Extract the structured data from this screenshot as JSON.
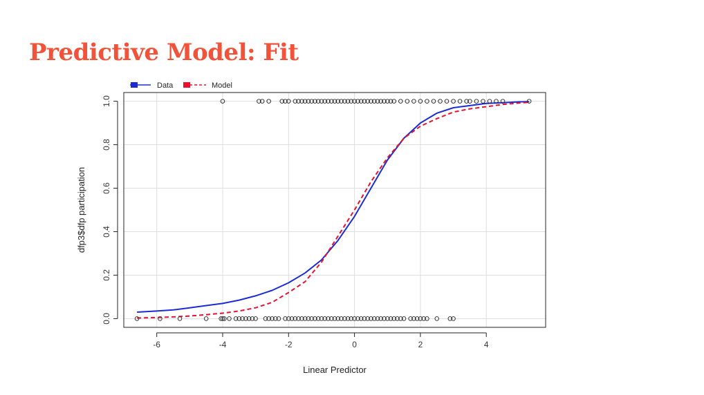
{
  "slide": {
    "title": "Predictive Model: Fit"
  },
  "colors": {
    "title": "#f0533a",
    "data": "#1a2bd6",
    "model": "#e8102e",
    "points": "#222222",
    "grid": "#dddddd"
  },
  "chart_data": {
    "type": "line",
    "xlabel": "Linear Predictor",
    "ylabel": "dfp3$dfp participation",
    "xlim": [
      -7,
      5.8
    ],
    "ylim": [
      -0.04,
      1.04
    ],
    "xticks": [
      -6,
      -4,
      -2,
      0,
      2,
      4
    ],
    "yticks": [
      0.0,
      0.2,
      0.4,
      0.6,
      0.8,
      1.0
    ],
    "xtick_labels": [
      "-6",
      "-4",
      "-2",
      "0",
      "2",
      "4"
    ],
    "ytick_labels": [
      "0.0",
      "0.2",
      "0.4",
      "0.6",
      "0.8",
      "1.0"
    ],
    "grid": true,
    "legend": {
      "placement": "top-left",
      "entries": [
        "Data",
        "Model"
      ]
    },
    "series": [
      {
        "name": "Data",
        "style": "solid",
        "x": [
          -6.6,
          -6.0,
          -5.5,
          -5.0,
          -4.5,
          -4.0,
          -3.5,
          -3.0,
          -2.5,
          -2.0,
          -1.5,
          -1.0,
          -0.5,
          0.0,
          0.5,
          1.0,
          1.5,
          2.0,
          2.5,
          3.0,
          3.5,
          4.0,
          4.5,
          5.0,
          5.3
        ],
        "y": [
          0.03,
          0.035,
          0.04,
          0.05,
          0.06,
          0.07,
          0.085,
          0.105,
          0.13,
          0.165,
          0.21,
          0.27,
          0.36,
          0.47,
          0.6,
          0.73,
          0.83,
          0.9,
          0.945,
          0.97,
          0.98,
          0.99,
          0.993,
          0.997,
          0.998
        ]
      },
      {
        "name": "Model",
        "style": "dashed",
        "x": [
          -6.6,
          -6.0,
          -5.5,
          -5.0,
          -4.5,
          -4.0,
          -3.5,
          -3.0,
          -2.5,
          -2.0,
          -1.5,
          -1.0,
          -0.5,
          0.0,
          0.5,
          1.0,
          1.5,
          2.0,
          2.5,
          3.0,
          3.5,
          4.0,
          4.5,
          5.0,
          5.3
        ],
        "y": [
          0.003,
          0.005,
          0.008,
          0.012,
          0.018,
          0.025,
          0.035,
          0.05,
          0.075,
          0.12,
          0.17,
          0.26,
          0.38,
          0.5,
          0.63,
          0.74,
          0.83,
          0.885,
          0.92,
          0.95,
          0.965,
          0.975,
          0.985,
          0.992,
          0.995
        ]
      },
      {
        "name": "",
        "style": "points",
        "y_value": 0,
        "x": [
          -6.6,
          -5.9,
          -5.3,
          -4.5,
          -4.05,
          -4.0,
          -3.95,
          -3.8,
          -3.6,
          -3.5,
          -3.4,
          -3.3,
          -3.2,
          -3.1,
          -3.0,
          -2.7,
          -2.6,
          -2.5,
          -2.4,
          -2.3,
          -2.1,
          -2.0,
          -1.9,
          -1.8,
          -1.7,
          -1.6,
          -1.5,
          -1.4,
          -1.3,
          -1.2,
          -1.1,
          -1.0,
          -0.9,
          -0.8,
          -0.7,
          -0.6,
          -0.5,
          -0.4,
          -0.3,
          -0.2,
          -0.1,
          0.0,
          0.1,
          0.2,
          0.3,
          0.4,
          0.5,
          0.6,
          0.7,
          0.8,
          0.9,
          1.0,
          1.1,
          1.2,
          1.3,
          1.4,
          1.5,
          1.7,
          1.8,
          1.9,
          2.0,
          2.1,
          2.2,
          2.5,
          2.9,
          3.0
        ]
      },
      {
        "name": "",
        "style": "points",
        "y_value": 1,
        "x": [
          -4.0,
          -2.9,
          -2.8,
          -2.6,
          -2.2,
          -2.1,
          -2.0,
          -1.8,
          -1.7,
          -1.6,
          -1.5,
          -1.4,
          -1.3,
          -1.2,
          -1.1,
          -1.0,
          -0.9,
          -0.8,
          -0.7,
          -0.6,
          -0.5,
          -0.4,
          -0.3,
          -0.2,
          -0.1,
          0.0,
          0.1,
          0.2,
          0.3,
          0.4,
          0.5,
          0.6,
          0.7,
          0.8,
          0.9,
          1.0,
          1.1,
          1.2,
          1.4,
          1.6,
          1.8,
          2.0,
          2.2,
          2.4,
          2.6,
          2.8,
          3.0,
          3.2,
          3.4,
          3.5,
          3.7,
          3.9,
          4.1,
          4.3,
          4.5,
          5.3
        ]
      }
    ]
  }
}
